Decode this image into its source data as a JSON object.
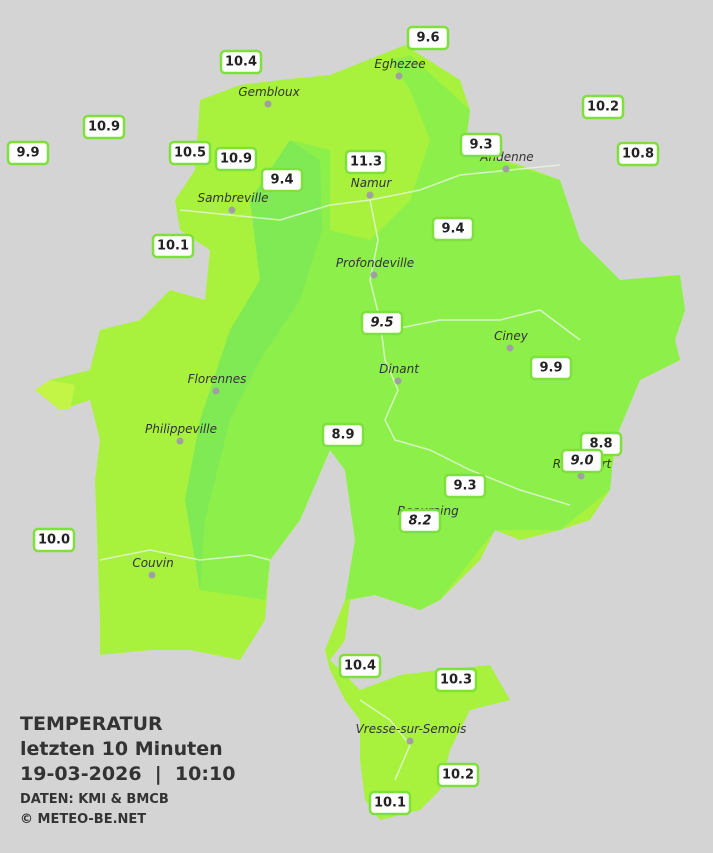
{
  "title": {
    "heading": "TEMPERATUR",
    "period": "letzten 10 Minuten",
    "datetime": "19-03-2026  |  10:10",
    "source": "DATEN: KMI & BMCB",
    "copyright": "© METEO-BE.NET"
  },
  "cities": [
    "Eghezee",
    "Gembloux",
    "Andenne",
    "Namur",
    "Sambreville",
    "Profondeville",
    "Ciney",
    "Dinant",
    "Florennes",
    "Philippeville",
    "Couvin",
    "Vresse-sur-Semois",
    "Rochefort",
    "Beauraing"
  ],
  "stations": [
    "10.4",
    "9.6",
    "10.9",
    "10.2",
    "9.9",
    "10.5",
    "10.9",
    "9.3",
    "10.8",
    "11.3",
    "9.4",
    "9.4",
    "10.1",
    "9.5",
    "9.9",
    "8.9",
    "8.8",
    "9.0",
    "9.3",
    "8.2",
    "10.0",
    "10.4",
    "10.3",
    "10.2",
    "10.1"
  ]
}
